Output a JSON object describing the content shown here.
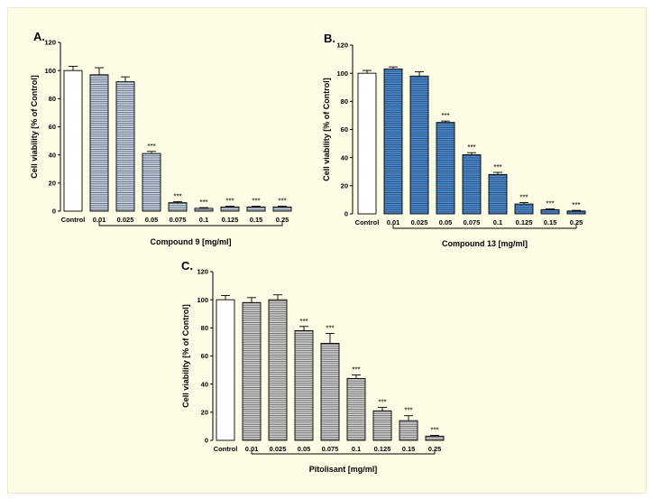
{
  "figure": {
    "background": "#fefde6"
  },
  "chart_data": [
    {
      "id": "A",
      "type": "bar",
      "panel_label": "A.",
      "ylabel": "Cell viability [% of Control]",
      "xlabel": "Compound 9 [mg/ml]",
      "categories": [
        "Control",
        "0.01",
        "0.025",
        "0.05",
        "0.075",
        "0.1",
        "0.125",
        "0.15",
        "0.25"
      ],
      "values": [
        100,
        97,
        92,
        41,
        6,
        2,
        3,
        3,
        3
      ],
      "errors": [
        3,
        5,
        3.5,
        1.5,
        0.8,
        0.5,
        0.5,
        0.5,
        0.5
      ],
      "significance": [
        "",
        "",
        "",
        "***",
        "***",
        "***",
        "***",
        "***",
        "***"
      ],
      "ylim": [
        0,
        120
      ],
      "yticks": [
        0,
        20,
        40,
        60,
        80,
        100,
        120
      ],
      "fill_color": "#c9d9ee",
      "control_fill": "#ffffff",
      "grid": false
    },
    {
      "id": "B",
      "type": "bar",
      "panel_label": "B.",
      "ylabel": "Cell viability [% of Control]",
      "xlabel": "Compound 13 [mg/ml]",
      "categories": [
        "Control",
        "0.01",
        "0.025",
        "0.05",
        "0.075",
        "0.1",
        "0.125",
        "0.15",
        "0.25"
      ],
      "values": [
        100,
        103,
        98,
        65,
        42,
        28,
        7,
        3,
        2
      ],
      "errors": [
        2,
        1.5,
        3,
        1,
        1.5,
        1.5,
        1,
        0.5,
        0.5
      ],
      "significance": [
        "",
        "",
        "",
        "***",
        "***",
        "***",
        "***",
        "***",
        "***"
      ],
      "ylim": [
        0,
        120
      ],
      "yticks": [
        0,
        20,
        40,
        60,
        80,
        100,
        120
      ],
      "fill_color": "#4a8fdc",
      "control_fill": "#ffffff",
      "grid": false
    },
    {
      "id": "C",
      "type": "bar",
      "panel_label": "C.",
      "ylabel": "Cell viability [% of Control]",
      "xlabel": "Pitolisant [mg/ml]",
      "categories": [
        "Control",
        "0.01",
        "0.025",
        "0.05",
        "0.075",
        "0.1",
        "0.125",
        "0.15",
        "0.25"
      ],
      "values": [
        100,
        98,
        100,
        78,
        69,
        44,
        21,
        14,
        3
      ],
      "errors": [
        3,
        3.5,
        3.5,
        3,
        7,
        2.5,
        2.5,
        3.5,
        0.5
      ],
      "significance": [
        "",
        "",
        "",
        "***",
        "***",
        "***",
        "***",
        "***",
        "***"
      ],
      "ylim": [
        0,
        120
      ],
      "yticks": [
        0,
        20,
        40,
        60,
        80,
        100,
        120
      ],
      "fill_color": "#d6d6d6",
      "control_fill": "#ffffff",
      "grid": false
    }
  ]
}
